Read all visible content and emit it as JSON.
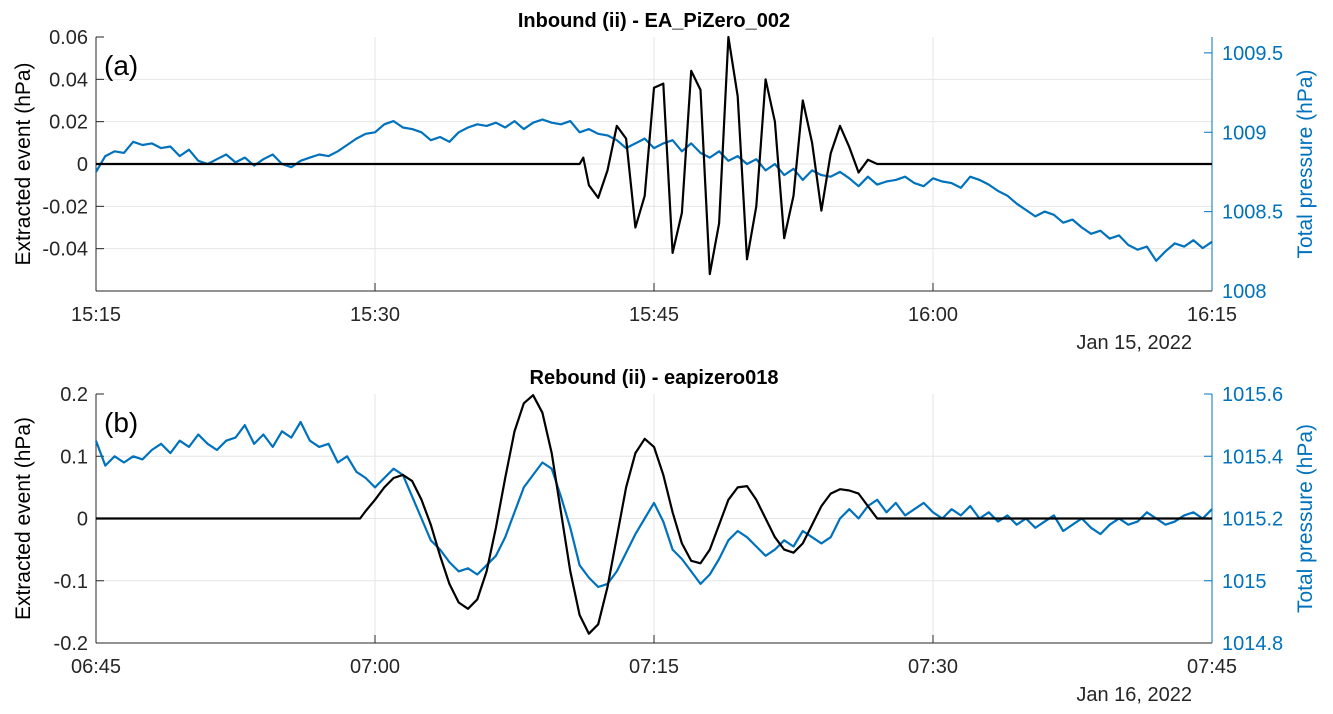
{
  "colors": {
    "event": "#000000",
    "pressure": "#0072BD",
    "grid": "#e5e5e5",
    "axis": "#262626"
  },
  "chart_data": [
    {
      "type": "line",
      "panel_label": "(a)",
      "title": "Inbound (ii) - EA_PiZero_002",
      "ylabel_left": "Extracted event (hPa)",
      "ylabel_right": "Total pressure (hPa)",
      "date_label": "Jan 15, 2022",
      "x_ticks": [
        "15:15",
        "15:30",
        "15:45",
        "16:00",
        "16:15"
      ],
      "x_range_minutes": [
        0,
        60
      ],
      "ylim_left": [
        -0.06,
        0.06
      ],
      "yticks_left": [
        "-0.04",
        "-0.02",
        "0",
        "0.02",
        "0.04",
        "0.06"
      ],
      "ylim_right": [
        1008.0,
        1009.6
      ],
      "yticks_right": [
        "1008",
        "1008.5",
        "1009",
        "1009.5"
      ],
      "grid": true,
      "series": [
        {
          "axis": "left",
          "color_key": "event",
          "x": [
            0,
            26,
            26.2,
            26.5,
            27,
            27.5,
            28,
            28.5,
            29,
            29.5,
            30,
            30.5,
            31,
            31.5,
            32,
            32.5,
            33,
            33.5,
            34,
            34.5,
            35,
            35.5,
            36,
            36.5,
            37,
            37.5,
            38,
            38.5,
            39,
            39.5,
            40,
            40.5,
            41,
            41.5,
            42,
            60
          ],
          "y": [
            0,
            0,
            0.003,
            -0.01,
            -0.016,
            -0.003,
            0.018,
            0.012,
            -0.03,
            -0.015,
            0.036,
            0.038,
            -0.042,
            -0.023,
            0.044,
            0.035,
            -0.052,
            -0.028,
            0.06,
            0.032,
            -0.045,
            -0.02,
            0.04,
            0.02,
            -0.035,
            -0.015,
            0.03,
            0.01,
            -0.022,
            0.005,
            0.018,
            0.008,
            -0.004,
            0.002,
            0,
            0
          ]
        },
        {
          "axis": "right",
          "color_key": "pressure",
          "x": [
            0,
            0.5,
            1,
            1.5,
            2,
            2.5,
            3,
            3.5,
            4,
            4.5,
            5,
            5.5,
            6,
            6.5,
            7,
            7.5,
            8,
            8.5,
            9,
            9.5,
            10,
            10.5,
            11,
            11.5,
            12,
            12.5,
            13,
            13.5,
            14,
            14.5,
            15,
            15.5,
            16,
            16.5,
            17,
            17.5,
            18,
            18.5,
            19,
            19.5,
            20,
            20.5,
            21,
            21.5,
            22,
            22.5,
            23,
            23.5,
            24,
            24.5,
            25,
            25.5,
            26,
            26.5,
            27,
            27.5,
            28,
            28.5,
            29,
            29.5,
            30,
            30.5,
            31,
            31.5,
            32,
            32.5,
            33,
            33.5,
            34,
            34.5,
            35,
            35.5,
            36,
            36.5,
            37,
            37.5,
            38,
            38.5,
            39,
            39.5,
            40,
            40.5,
            41,
            41.5,
            42,
            42.5,
            43,
            43.5,
            44,
            44.5,
            45,
            45.5,
            46,
            46.5,
            47,
            47.5,
            48,
            48.5,
            49,
            49.5,
            50,
            50.5,
            51,
            51.5,
            52,
            52.5,
            53,
            53.5,
            54,
            54.5,
            55,
            55.5,
            56,
            56.5,
            57,
            57.5,
            58,
            58.5,
            59,
            59.5,
            60
          ],
          "y": [
            1008.75,
            1008.85,
            1008.88,
            1008.87,
            1008.94,
            1008.92,
            1008.93,
            1008.9,
            1008.91,
            1008.85,
            1008.89,
            1008.82,
            1008.8,
            1008.83,
            1008.86,
            1008.81,
            1008.84,
            1008.79,
            1008.83,
            1008.86,
            1008.8,
            1008.78,
            1008.82,
            1008.84,
            1008.86,
            1008.85,
            1008.88,
            1008.92,
            1008.96,
            1008.99,
            1009.0,
            1009.05,
            1009.07,
            1009.03,
            1009.02,
            1009.0,
            1008.95,
            1008.97,
            1008.94,
            1009.0,
            1009.03,
            1009.05,
            1009.04,
            1009.06,
            1009.03,
            1009.07,
            1009.02,
            1009.06,
            1009.08,
            1009.06,
            1009.05,
            1009.07,
            1009.0,
            1009.02,
            1008.99,
            1008.98,
            1008.95,
            1008.9,
            1008.93,
            1008.96,
            1008.9,
            1008.93,
            1008.95,
            1008.88,
            1008.93,
            1008.87,
            1008.84,
            1008.88,
            1008.82,
            1008.85,
            1008.8,
            1008.83,
            1008.76,
            1008.8,
            1008.73,
            1008.77,
            1008.7,
            1008.76,
            1008.73,
            1008.72,
            1008.75,
            1008.71,
            1008.66,
            1008.72,
            1008.67,
            1008.69,
            1008.7,
            1008.72,
            1008.68,
            1008.66,
            1008.71,
            1008.69,
            1008.68,
            1008.65,
            1008.72,
            1008.7,
            1008.67,
            1008.63,
            1008.6,
            1008.55,
            1008.51,
            1008.47,
            1008.5,
            1008.48,
            1008.43,
            1008.45,
            1008.4,
            1008.36,
            1008.38,
            1008.33,
            1008.35,
            1008.29,
            1008.26,
            1008.28,
            1008.19,
            1008.25,
            1008.3,
            1008.28,
            1008.32,
            1008.27,
            1008.31
          ]
        }
      ]
    },
    {
      "type": "line",
      "panel_label": "(b)",
      "title": "Rebound (ii) - eapizero018",
      "ylabel_left": "Extracted event (hPa)",
      "ylabel_right": "Total pressure (hPa)",
      "date_label": "Jan 16, 2022",
      "x_ticks": [
        "06:45",
        "07:00",
        "07:15",
        "07:30",
        "07:45"
      ],
      "x_range_minutes": [
        0,
        60
      ],
      "ylim_left": [
        -0.2,
        0.2
      ],
      "yticks_left": [
        "-0.2",
        "-0.1",
        "0",
        "0.1",
        "0.2"
      ],
      "ylim_right": [
        1014.8,
        1015.6
      ],
      "yticks_right": [
        "1014.8",
        "1015",
        "1015.2",
        "1015.4",
        "1015.6"
      ],
      "grid": true,
      "series": [
        {
          "axis": "left",
          "color_key": "event",
          "x": [
            0,
            14.2,
            14.5,
            15,
            15.5,
            16,
            16.5,
            17,
            17.5,
            18,
            18.5,
            19,
            19.5,
            20,
            20.5,
            21,
            21.5,
            22,
            22.5,
            23,
            23.5,
            24,
            24.5,
            25,
            25.5,
            26,
            26.5,
            27,
            27.5,
            28,
            28.5,
            29,
            29.5,
            30,
            30.5,
            31,
            31.5,
            32,
            32.5,
            33,
            33.5,
            34,
            34.5,
            35,
            35.5,
            36,
            36.5,
            37,
            37.5,
            38,
            38.5,
            39,
            39.5,
            40,
            40.5,
            41,
            41.5,
            42,
            42.5,
            43,
            43.5,
            44,
            44.5,
            45,
            45.5,
            46,
            46.5,
            47,
            47.5,
            48,
            48.5,
            49,
            49.5,
            50,
            60
          ],
          "y": [
            0,
            0,
            0.012,
            0.03,
            0.05,
            0.065,
            0.07,
            0.06,
            0.03,
            -0.01,
            -0.06,
            -0.105,
            -0.135,
            -0.145,
            -0.13,
            -0.085,
            -0.015,
            0.065,
            0.14,
            0.185,
            0.198,
            0.17,
            0.105,
            0.01,
            -0.085,
            -0.155,
            -0.185,
            -0.17,
            -0.11,
            -0.03,
            0.05,
            0.105,
            0.128,
            0.115,
            0.07,
            0.01,
            -0.04,
            -0.068,
            -0.072,
            -0.05,
            -0.01,
            0.03,
            0.05,
            0.052,
            0.03,
            0.0,
            -0.03,
            -0.05,
            -0.055,
            -0.04,
            -0.01,
            0.02,
            0.04,
            0.047,
            0.045,
            0.04,
            0.02,
            0,
            0,
            0,
            0,
            0,
            0,
            0,
            0,
            0,
            0,
            0,
            0,
            0,
            0,
            0,
            0,
            0,
            0
          ]
        },
        {
          "axis": "right",
          "color_key": "pressure",
          "x": [
            0,
            0.5,
            1,
            1.5,
            2,
            2.5,
            3,
            3.5,
            4,
            4.5,
            5,
            5.5,
            6,
            6.5,
            7,
            7.5,
            8,
            8.5,
            9,
            9.5,
            10,
            10.5,
            11,
            11.5,
            12,
            12.5,
            13,
            13.5,
            14,
            14.5,
            15,
            15.5,
            16,
            16.5,
            17,
            17.5,
            18,
            18.5,
            19,
            19.5,
            20,
            20.5,
            21,
            21.5,
            22,
            22.5,
            23,
            23.5,
            24,
            24.5,
            25,
            25.5,
            26,
            26.5,
            27,
            27.5,
            28,
            28.5,
            29,
            29.5,
            30,
            30.5,
            31,
            31.5,
            32,
            32.5,
            33,
            33.5,
            34,
            34.5,
            35,
            35.5,
            36,
            36.5,
            37,
            37.5,
            38,
            38.5,
            39,
            39.5,
            40,
            40.5,
            41,
            41.5,
            42,
            42.5,
            43,
            43.5,
            44,
            44.5,
            45,
            45.5,
            46,
            46.5,
            47,
            47.5,
            48,
            48.5,
            49,
            49.5,
            50,
            50.5,
            51,
            51.5,
            52,
            52.5,
            53,
            53.5,
            54,
            54.5,
            55,
            55.5,
            56,
            56.5,
            57,
            57.5,
            58,
            58.5,
            59,
            59.5,
            60
          ],
          "y": [
            1015.45,
            1015.37,
            1015.4,
            1015.38,
            1015.4,
            1015.39,
            1015.42,
            1015.44,
            1015.41,
            1015.45,
            1015.43,
            1015.47,
            1015.44,
            1015.42,
            1015.45,
            1015.46,
            1015.5,
            1015.44,
            1015.47,
            1015.43,
            1015.48,
            1015.46,
            1015.51,
            1015.45,
            1015.43,
            1015.44,
            1015.38,
            1015.4,
            1015.35,
            1015.33,
            1015.3,
            1015.33,
            1015.36,
            1015.34,
            1015.27,
            1015.2,
            1015.13,
            1015.1,
            1015.06,
            1015.03,
            1015.04,
            1015.02,
            1015.05,
            1015.08,
            1015.14,
            1015.22,
            1015.3,
            1015.34,
            1015.38,
            1015.36,
            1015.27,
            1015.17,
            1015.05,
            1015.01,
            1014.98,
            1014.99,
            1015.03,
            1015.09,
            1015.15,
            1015.2,
            1015.25,
            1015.19,
            1015.1,
            1015.07,
            1015.03,
            1014.99,
            1015.02,
            1015.07,
            1015.13,
            1015.16,
            1015.14,
            1015.11,
            1015.08,
            1015.1,
            1015.13,
            1015.11,
            1015.16,
            1015.14,
            1015.12,
            1015.14,
            1015.2,
            1015.23,
            1015.2,
            1015.24,
            1015.26,
            1015.22,
            1015.25,
            1015.21,
            1015.23,
            1015.25,
            1015.22,
            1015.2,
            1015.23,
            1015.21,
            1015.24,
            1015.2,
            1015.22,
            1015.19,
            1015.21,
            1015.18,
            1015.2,
            1015.17,
            1015.19,
            1015.21,
            1015.16,
            1015.18,
            1015.2,
            1015.17,
            1015.15,
            1015.18,
            1015.2,
            1015.18,
            1015.19,
            1015.22,
            1015.2,
            1015.18,
            1015.19,
            1015.21,
            1015.22,
            1015.2,
            1015.23
          ]
        }
      ]
    }
  ]
}
